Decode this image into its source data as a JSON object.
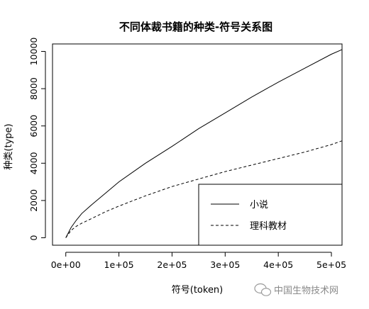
{
  "chart_data": {
    "type": "line",
    "title": "不同体裁书籍的种类-符号关系图",
    "xlabel": "符号(token)",
    "ylabel": "种类(type)",
    "xlim": [
      -25000,
      520000
    ],
    "ylim": [
      -400,
      10400
    ],
    "x_ticks": [
      0,
      100000,
      200000,
      300000,
      400000,
      500000
    ],
    "x_tick_labels": [
      "0e+00",
      "1e+05",
      "2e+05",
      "3e+05",
      "4e+05",
      "5e+05"
    ],
    "y_ticks": [
      0,
      2000,
      4000,
      6000,
      8000,
      10000
    ],
    "y_tick_labels": [
      "0",
      "2000",
      "4000",
      "6000",
      "8000",
      "10000"
    ],
    "legend_position": "bottom-right",
    "series": [
      {
        "name": "小说",
        "line_style": "solid",
        "x": [
          0,
          10000,
          20000,
          30000,
          50000,
          75000,
          100000,
          150000,
          200000,
          250000,
          300000,
          350000,
          400000,
          450000,
          500000,
          520000
        ],
        "y": [
          0,
          550,
          950,
          1300,
          1800,
          2400,
          3000,
          4000,
          4900,
          5850,
          6700,
          7550,
          8350,
          9100,
          9850,
          10100
        ]
      },
      {
        "name": "理科教材",
        "line_style": "dashed",
        "x": [
          0,
          10000,
          20000,
          30000,
          50000,
          75000,
          100000,
          150000,
          200000,
          250000,
          300000,
          350000,
          400000,
          450000,
          500000,
          520000
        ],
        "y": [
          0,
          400,
          620,
          780,
          1050,
          1400,
          1700,
          2250,
          2750,
          3150,
          3550,
          3900,
          4250,
          4600,
          5000,
          5200
        ]
      }
    ]
  },
  "watermark": {
    "icon": "wechat-icon",
    "text": "中国生物技术网"
  }
}
